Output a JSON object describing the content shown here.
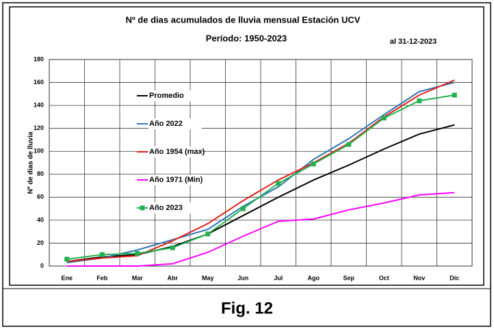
{
  "chart_data": {
    "type": "line",
    "title": "Nº de dias acumulados de lluvia mensual Estación UCV",
    "subtitle": "Período:  1950-2023",
    "annotation": "al 31-12-2023",
    "y_label": "Nº de dias de lluvia",
    "categories": [
      "Ene",
      "Feb",
      "Mar",
      "Abr",
      "May",
      "Jun",
      "Jul",
      "Ago",
      "Sep",
      "Oct",
      "Nov",
      "Dic"
    ],
    "series": [
      {
        "name": "Promedio",
        "color": "#000000",
        "values": [
          4,
          8,
          10,
          17,
          28,
          44,
          60,
          75,
          88,
          102,
          115,
          123
        ]
      },
      {
        "name": "Año 2022",
        "color": "#2e75b6",
        "values": [
          3,
          7,
          14,
          23,
          32,
          52,
          69,
          93,
          111,
          132,
          152,
          160
        ]
      },
      {
        "name": "Año 1954 (max)",
        "color": "#e0201b",
        "values": [
          4,
          7,
          9,
          22,
          37,
          57,
          75,
          90,
          107,
          130,
          149,
          162
        ]
      },
      {
        "name": "Año 1971 (Min)",
        "color": "#ff00ff",
        "values": [
          0,
          0,
          0,
          2,
          12,
          26,
          39,
          41,
          49,
          55,
          62,
          64
        ]
      },
      {
        "name": "Año 2023",
        "color": "#22b14c",
        "marker": "square",
        "values": [
          6,
          10,
          11,
          16,
          28,
          50,
          72,
          89,
          106,
          129,
          144,
          149
        ]
      }
    ],
    "ylim": [
      0,
      180
    ],
    "yticks": [
      0,
      20,
      40,
      60,
      80,
      100,
      120,
      140,
      160,
      180
    ],
    "grid": true
  },
  "caption": "Fig. 12"
}
